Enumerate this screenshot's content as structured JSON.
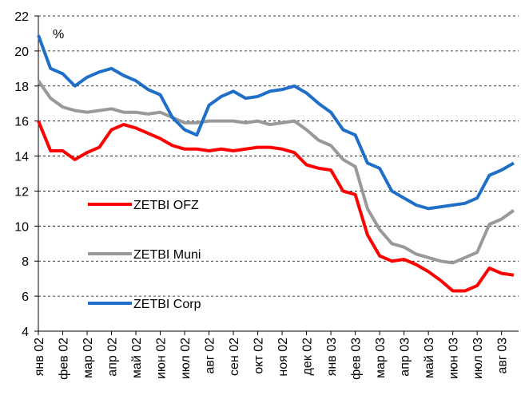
{
  "chart_data": {
    "type": "line",
    "ylabel": "%",
    "x": [
      0,
      0.5,
      1,
      1.5,
      2,
      2.5,
      3,
      3.5,
      4,
      4.5,
      5,
      5.5,
      6,
      6.5,
      7,
      7.5,
      8,
      8.5,
      9,
      9.5,
      10,
      10.5,
      11,
      11.5,
      12,
      12.5,
      13,
      13.5,
      14,
      14.5,
      15,
      15.5,
      16,
      16.5,
      17,
      17.5,
      18,
      18.5,
      19,
      19.5
    ],
    "series": [
      {
        "name": "ZETBI OFZ",
        "color": "#ff0000",
        "values": [
          16,
          14.3,
          14.3,
          13.8,
          14.2,
          14.5,
          15.5,
          15.8,
          15.6,
          15.3,
          15.0,
          14.6,
          14.4,
          14.4,
          14.3,
          14.4,
          14.3,
          14.4,
          14.5,
          14.5,
          14.4,
          14.2,
          13.5,
          13.3,
          13.2,
          12.0,
          11.8,
          9.5,
          8.3,
          8.0,
          8.1,
          7.8,
          7.4,
          6.9,
          6.3,
          6.3,
          6.6,
          7.6,
          7.3,
          7.2
        ]
      },
      {
        "name": "ZETBI Muni",
        "color": "#999999",
        "values": [
          18.3,
          17.3,
          16.8,
          16.6,
          16.5,
          16.6,
          16.7,
          16.5,
          16.5,
          16.4,
          16.5,
          16.2,
          15.9,
          15.9,
          16.0,
          16.0,
          16.0,
          15.9,
          16.0,
          15.8,
          15.9,
          16.0,
          15.5,
          14.9,
          14.6,
          13.8,
          13.4,
          11.0,
          9.8,
          9.0,
          8.8,
          8.4,
          8.2,
          8.0,
          7.9,
          8.2,
          8.5,
          10.1,
          10.4,
          10.9
        ]
      },
      {
        "name": "ZETBI Corp",
        "color": "#1f6fc9",
        "values": [
          20.9,
          19.0,
          18.7,
          18.0,
          18.5,
          18.8,
          19.0,
          18.6,
          18.3,
          17.8,
          17.5,
          16.2,
          15.5,
          15.2,
          16.9,
          17.4,
          17.7,
          17.3,
          17.4,
          17.7,
          17.8,
          18.0,
          17.6,
          17.0,
          16.5,
          15.5,
          15.2,
          13.6,
          13.3,
          12.0,
          11.6,
          11.2,
          11.0,
          11.1,
          11.2,
          11.3,
          11.6,
          12.9,
          13.2,
          13.6
        ]
      }
    ],
    "xlim": [
      0,
      19.7
    ],
    "xticks": [
      {
        "value": 0,
        "label": "янв 02"
      },
      {
        "value": 1,
        "label": "фев 02"
      },
      {
        "value": 2,
        "label": "мар 02"
      },
      {
        "value": 3,
        "label": "апр 02"
      },
      {
        "value": 4,
        "label": "май 02"
      },
      {
        "value": 5,
        "label": "июн 02"
      },
      {
        "value": 6,
        "label": "июл 02"
      },
      {
        "value": 7,
        "label": "авг 02"
      },
      {
        "value": 8,
        "label": "сен 02"
      },
      {
        "value": 9,
        "label": "окт 02"
      },
      {
        "value": 10,
        "label": "ноя 02"
      },
      {
        "value": 11,
        "label": "дек 02"
      },
      {
        "value": 12,
        "label": "янв 03"
      },
      {
        "value": 13,
        "label": "фев 03"
      },
      {
        "value": 14,
        "label": "мар 03"
      },
      {
        "value": 15,
        "label": "апр 03"
      },
      {
        "value": 16,
        "label": "май 03"
      },
      {
        "value": 17,
        "label": "июн 03"
      },
      {
        "value": 18,
        "label": "июл 03"
      },
      {
        "value": 19,
        "label": "авг 03"
      }
    ],
    "ylim": [
      4,
      22
    ],
    "yticks": [
      4,
      6,
      8,
      10,
      12,
      14,
      16,
      18,
      20,
      22
    ],
    "grid": true,
    "legend_position": "center-left"
  }
}
